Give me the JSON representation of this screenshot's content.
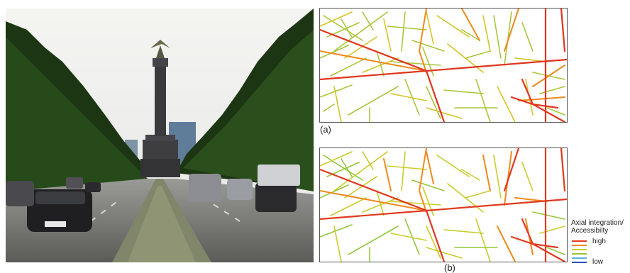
{
  "photo": {
    "subject": "tree-lined boulevard with victory column and traffic",
    "colors": {
      "sky": "#f2f2ef",
      "trees": "#1f3a14",
      "road": "#6e6e6b",
      "median": "#8a8f6e",
      "column": "#3a3a3c"
    }
  },
  "maps": {
    "caption_a": "(a)",
    "caption_b": "(b)"
  },
  "legend": {
    "title": "Axial integration/\nAccessibilty",
    "high_label": "high",
    "low_label": "low",
    "colors": [
      "#e53a1e",
      "#f08a1c",
      "#c9cc2a",
      "#94c63a",
      "#5bb0d8",
      "#2a52b8"
    ]
  }
}
